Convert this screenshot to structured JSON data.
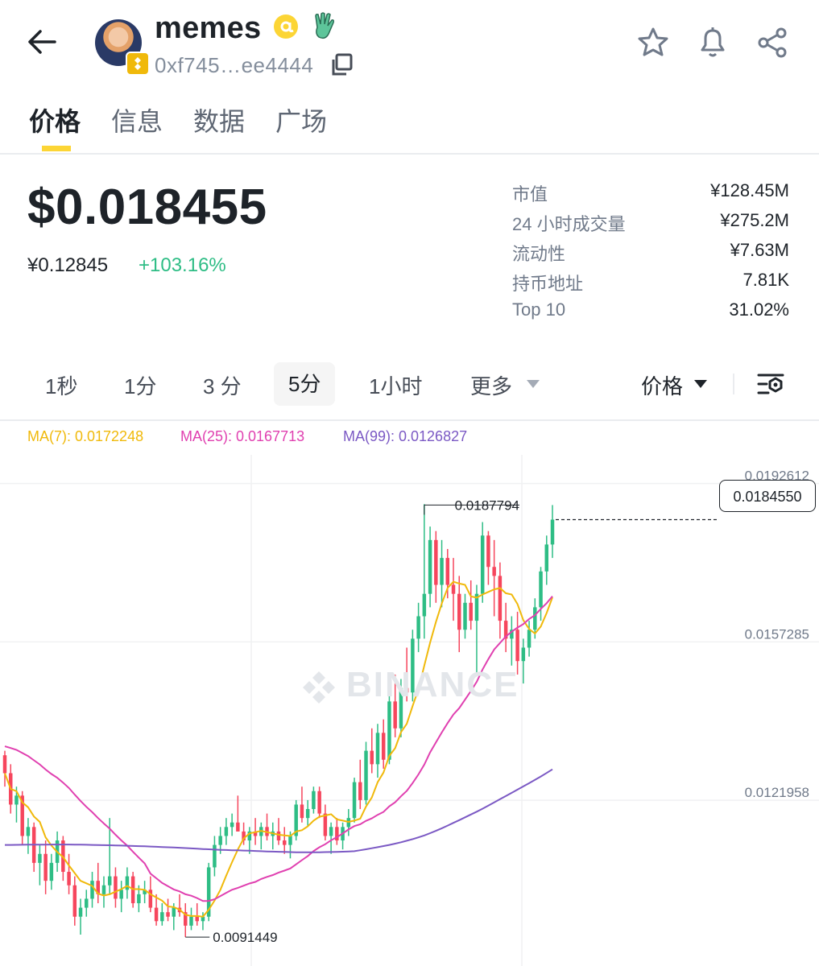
{
  "header": {
    "title": "memes",
    "address": "0xf745…ee4444"
  },
  "tabs": [
    {
      "label": "价格",
      "active": true
    },
    {
      "label": "信息",
      "active": false
    },
    {
      "label": "数据",
      "active": false
    },
    {
      "label": "广场",
      "active": false
    }
  ],
  "price": {
    "usd": "$0.018455",
    "cny": "¥0.12845",
    "change": "+103.16%"
  },
  "stats": [
    {
      "label": "市值",
      "value": "¥128.45M"
    },
    {
      "label": "24 小时成交量",
      "value": "¥275.2M"
    },
    {
      "label": "流动性",
      "value": "¥7.63M"
    },
    {
      "label": "持币地址",
      "value": "7.81K"
    },
    {
      "label": "Top 10",
      "value": "31.02%"
    }
  ],
  "intervals": [
    {
      "label": "1秒",
      "selected": false
    },
    {
      "label": "1分",
      "selected": false
    },
    {
      "label": "3 分",
      "selected": false
    },
    {
      "label": "5分",
      "selected": true
    },
    {
      "label": "1小时",
      "selected": false
    },
    {
      "label": "更多",
      "selected": false
    }
  ],
  "price_type": "价格",
  "ma_legend": [
    {
      "label": "MA(7): 0.0172248",
      "color": "#f0b90b"
    },
    {
      "label": "MA(25): 0.0167713",
      "color": "#e040b0"
    },
    {
      "label": "MA(99): 0.0126827",
      "color": "#7b59c4"
    }
  ],
  "watermark": "BINANCE",
  "colors": {
    "up": "#2ebd85",
    "down": "#f6465d",
    "accent": "#fcd535"
  },
  "chart_data": {
    "type": "candlestick",
    "title": "",
    "interval": "5分",
    "y_ticks": [
      0.0192612,
      0.0157285,
      0.0121958
    ],
    "y_tick_labels": [
      "0.0192612",
      "0.0157285",
      "0.0121958"
    ],
    "ylim": [
      0.0085,
      0.0199
    ],
    "last_price": 0.018455,
    "last_price_label": "0.0184550",
    "high_marker": {
      "value": 0.0187794,
      "label": "0.0187794"
    },
    "low_marker": {
      "value": 0.0091449,
      "label": "0.0091449"
    },
    "ma_values": {
      "ma7": 0.0172248,
      "ma25": 0.0167713,
      "ma99": 0.0126827
    },
    "candles": [
      [
        0.0132,
        0.0133,
        0.0125,
        0.0128
      ],
      [
        0.0128,
        0.013,
        0.0119,
        0.0121
      ],
      [
        0.0121,
        0.0125,
        0.0117,
        0.0123
      ],
      [
        0.0123,
        0.0124,
        0.0112,
        0.0114
      ],
      [
        0.0114,
        0.0118,
        0.011,
        0.0116
      ],
      [
        0.0116,
        0.0117,
        0.0106,
        0.0108
      ],
      [
        0.0108,
        0.0112,
        0.0103,
        0.011
      ],
      [
        0.011,
        0.0113,
        0.0101,
        0.0104
      ],
      [
        0.0104,
        0.011,
        0.0102,
        0.0108
      ],
      [
        0.0108,
        0.0115,
        0.0106,
        0.0113
      ],
      [
        0.0113,
        0.0114,
        0.0104,
        0.0106
      ],
      [
        0.0106,
        0.011,
        0.0101,
        0.0103
      ],
      [
        0.0103,
        0.0105,
        0.0094,
        0.0096
      ],
      [
        0.0096,
        0.01,
        0.0092,
        0.0098
      ],
      [
        0.0098,
        0.0102,
        0.0096,
        0.01
      ],
      [
        0.01,
        0.0106,
        0.0098,
        0.0104
      ],
      [
        0.0104,
        0.0108,
        0.0099,
        0.0101
      ],
      [
        0.0101,
        0.0105,
        0.0098,
        0.0103
      ],
      [
        0.0103,
        0.0118,
        0.0101,
        0.0105
      ],
      [
        0.0105,
        0.0107,
        0.0098,
        0.01
      ],
      [
        0.01,
        0.0104,
        0.0097,
        0.0102
      ],
      [
        0.0102,
        0.0107,
        0.01,
        0.0105
      ],
      [
        0.0105,
        0.0106,
        0.0098,
        0.0099
      ],
      [
        0.0099,
        0.0103,
        0.0097,
        0.0101
      ],
      [
        0.0101,
        0.0104,
        0.0099,
        0.0102
      ],
      [
        0.0102,
        0.0105,
        0.0097,
        0.0098
      ],
      [
        0.0098,
        0.0101,
        0.0094,
        0.0095
      ],
      [
        0.0095,
        0.0099,
        0.0094,
        0.0097
      ],
      [
        0.0097,
        0.01,
        0.0095,
        0.0096
      ],
      [
        0.0096,
        0.0099,
        0.0093,
        0.0098
      ],
      [
        0.0098,
        0.0101,
        0.0096,
        0.0097
      ],
      [
        0.0097,
        0.0099,
        0.0091449,
        0.0094
      ],
      [
        0.0094,
        0.0098,
        0.0093,
        0.0096
      ],
      [
        0.0096,
        0.0099,
        0.0094,
        0.0095
      ],
      [
        0.0095,
        0.0097,
        0.0093,
        0.0096
      ],
      [
        0.0096,
        0.0108,
        0.0095,
        0.0107
      ],
      [
        0.0107,
        0.0114,
        0.0105,
        0.0112
      ],
      [
        0.0112,
        0.0116,
        0.011,
        0.0114
      ],
      [
        0.0114,
        0.0118,
        0.0112,
        0.0116
      ],
      [
        0.0116,
        0.0119,
        0.0114,
        0.0117
      ],
      [
        0.0117,
        0.0123,
        0.0115,
        0.0115
      ],
      [
        0.0115,
        0.0117,
        0.0112,
        0.0113
      ],
      [
        0.0113,
        0.0116,
        0.011,
        0.0115
      ],
      [
        0.0115,
        0.0118,
        0.0112,
        0.0114
      ],
      [
        0.0114,
        0.0117,
        0.0111,
        0.0116
      ],
      [
        0.0116,
        0.0119,
        0.0113,
        0.0114
      ],
      [
        0.0114,
        0.0117,
        0.0111,
        0.0115
      ],
      [
        0.0115,
        0.0118,
        0.0112,
        0.0113
      ],
      [
        0.0113,
        0.0116,
        0.011,
        0.0112
      ],
      [
        0.0112,
        0.0115,
        0.0109,
        0.0114
      ],
      [
        0.0114,
        0.0122,
        0.0113,
        0.0121
      ],
      [
        0.0121,
        0.0125,
        0.0117,
        0.0118
      ],
      [
        0.0118,
        0.0122,
        0.0116,
        0.012
      ],
      [
        0.012,
        0.0125,
        0.0119,
        0.0124
      ],
      [
        0.0124,
        0.0125,
        0.0118,
        0.0119
      ],
      [
        0.0119,
        0.0121,
        0.0113,
        0.0114
      ],
      [
        0.0114,
        0.0117,
        0.011,
        0.0116
      ],
      [
        0.0116,
        0.0118,
        0.0112,
        0.0113
      ],
      [
        0.0113,
        0.0117,
        0.0111,
        0.0116
      ],
      [
        0.0116,
        0.012,
        0.0114,
        0.0118
      ],
      [
        0.0118,
        0.0127,
        0.0117,
        0.0126
      ],
      [
        0.0126,
        0.0131,
        0.012,
        0.0122
      ],
      [
        0.0122,
        0.0135,
        0.0121,
        0.0133
      ],
      [
        0.0133,
        0.0138,
        0.0128,
        0.013
      ],
      [
        0.013,
        0.0139,
        0.0127,
        0.0137
      ],
      [
        0.0137,
        0.014,
        0.0129,
        0.0131
      ],
      [
        0.0131,
        0.0146,
        0.013,
        0.0144
      ],
      [
        0.0144,
        0.015,
        0.0136,
        0.0138
      ],
      [
        0.0138,
        0.0149,
        0.0136,
        0.0147
      ],
      [
        0.0147,
        0.0156,
        0.0144,
        0.0146
      ],
      [
        0.0146,
        0.016,
        0.0144,
        0.0158
      ],
      [
        0.0158,
        0.0166,
        0.0155,
        0.0163
      ],
      [
        0.0163,
        0.0188,
        0.0158,
        0.0168
      ],
      [
        0.0168,
        0.0183,
        0.0165,
        0.018
      ],
      [
        0.018,
        0.0182,
        0.0166,
        0.017
      ],
      [
        0.017,
        0.018,
        0.0165,
        0.0176
      ],
      [
        0.0176,
        0.0178,
        0.0167,
        0.017
      ],
      [
        0.017,
        0.0176,
        0.0162,
        0.0168
      ],
      [
        0.0168,
        0.0172,
        0.0155,
        0.016
      ],
      [
        0.016,
        0.0168,
        0.0158,
        0.0166
      ],
      [
        0.0166,
        0.0171,
        0.016,
        0.0162
      ],
      [
        0.0162,
        0.017,
        0.015,
        0.0168
      ],
      [
        0.0168,
        0.0184,
        0.0166,
        0.0181
      ],
      [
        0.0181,
        0.0182,
        0.017,
        0.0174
      ],
      [
        0.0174,
        0.018,
        0.0163,
        0.0172
      ],
      [
        0.0172,
        0.0175,
        0.0158,
        0.0162
      ],
      [
        0.0162,
        0.0166,
        0.0155,
        0.0158
      ],
      [
        0.0158,
        0.0163,
        0.0152,
        0.016
      ],
      [
        0.016,
        0.0164,
        0.015,
        0.0153
      ],
      [
        0.0153,
        0.0158,
        0.0148,
        0.0156
      ],
      [
        0.0156,
        0.0162,
        0.0154,
        0.016
      ],
      [
        0.016,
        0.0167,
        0.0158,
        0.0165
      ],
      [
        0.0165,
        0.0174,
        0.0162,
        0.0173
      ],
      [
        0.0173,
        0.0181,
        0.017,
        0.0179
      ],
      [
        0.0179,
        0.0187794,
        0.0176,
        0.018455
      ]
    ]
  }
}
